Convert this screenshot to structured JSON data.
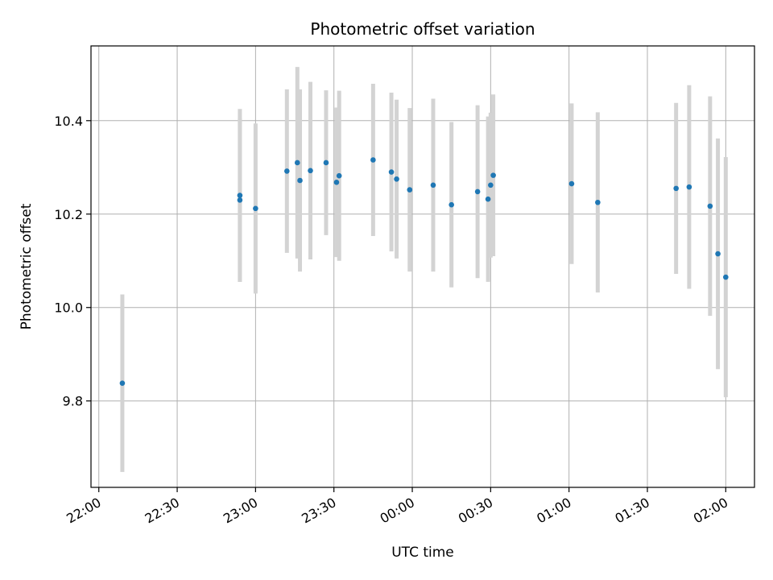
{
  "chart_data": {
    "type": "scatter",
    "title": "Photometric offset variation",
    "xlabel": "UTC time",
    "ylabel": "Photometric offset",
    "xlim": [
      "21:57",
      "02:11"
    ],
    "ylim": [
      9.615,
      10.56
    ],
    "x_ticks": [
      "22:00",
      "22:30",
      "23:00",
      "23:30",
      "00:00",
      "00:30",
      "01:00",
      "01:30",
      "02:00"
    ],
    "y_ticks": [
      9.8,
      10.0,
      10.2,
      10.4
    ],
    "grid": true,
    "colors": {
      "point": "#1f77b4",
      "errorbar": "#d3d3d3",
      "grid": "#b0b0b0"
    },
    "points": [
      {
        "time": "22:09",
        "offset": 9.838,
        "error": 0.19
      },
      {
        "time": "22:54",
        "offset": 10.24,
        "error": 0.185
      },
      {
        "time": "22:54",
        "offset": 10.23,
        "error": 0.175
      },
      {
        "time": "23:00",
        "offset": 10.212,
        "error": 0.182
      },
      {
        "time": "23:12",
        "offset": 10.292,
        "error": 0.175
      },
      {
        "time": "23:16",
        "offset": 10.31,
        "error": 0.205
      },
      {
        "time": "23:17",
        "offset": 10.272,
        "error": 0.195
      },
      {
        "time": "23:21",
        "offset": 10.293,
        "error": 0.19
      },
      {
        "time": "23:27",
        "offset": 10.31,
        "error": 0.155
      },
      {
        "time": "23:31",
        "offset": 10.268,
        "error": 0.16
      },
      {
        "time": "23:32",
        "offset": 10.282,
        "error": 0.182
      },
      {
        "time": "23:45",
        "offset": 10.316,
        "error": 0.163
      },
      {
        "time": "23:52",
        "offset": 10.29,
        "error": 0.17
      },
      {
        "time": "23:54",
        "offset": 10.275,
        "error": 0.17
      },
      {
        "time": "23:59",
        "offset": 10.252,
        "error": 0.175
      },
      {
        "time": "00:08",
        "offset": 10.262,
        "error": 0.185
      },
      {
        "time": "00:15",
        "offset": 10.22,
        "error": 0.177
      },
      {
        "time": "00:25",
        "offset": 10.248,
        "error": 0.185
      },
      {
        "time": "00:29",
        "offset": 10.232,
        "error": 0.177
      },
      {
        "time": "00:30",
        "offset": 10.262,
        "error": 0.155
      },
      {
        "time": "00:31",
        "offset": 10.283,
        "error": 0.173
      },
      {
        "time": "01:01",
        "offset": 10.265,
        "error": 0.172
      },
      {
        "time": "01:11",
        "offset": 10.225,
        "error": 0.193
      },
      {
        "time": "01:41",
        "offset": 10.255,
        "error": 0.183
      },
      {
        "time": "01:46",
        "offset": 10.258,
        "error": 0.218
      },
      {
        "time": "01:54",
        "offset": 10.217,
        "error": 0.235
      },
      {
        "time": "01:57",
        "offset": 10.115,
        "error": 0.247
      },
      {
        "time": "02:00",
        "offset": 10.065,
        "error": 0.257
      }
    ]
  }
}
